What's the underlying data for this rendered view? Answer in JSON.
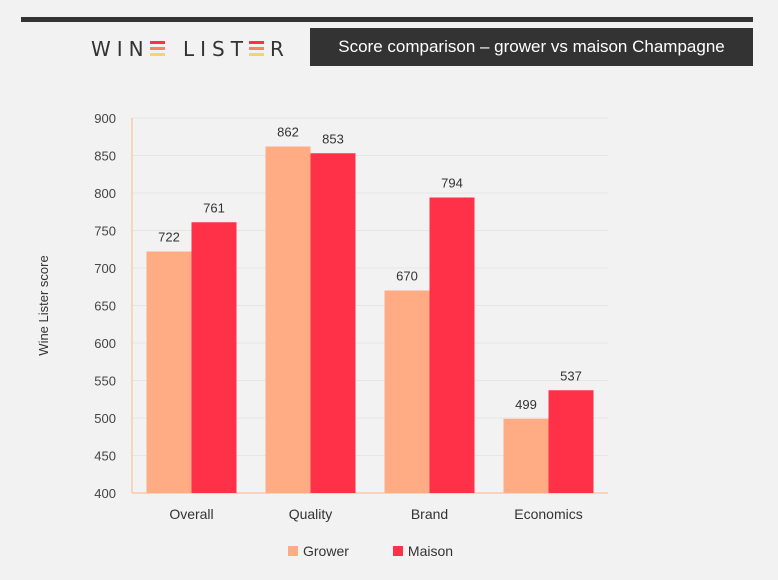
{
  "header": {
    "logo_left": "WIN",
    "logo_right": "LIST",
    "logo_end": "R",
    "logo_mark_colors": [
      "#ff3148",
      "#f08a5d",
      "#ffd166"
    ],
    "title": "Score comparison – grower vs maison Champagne"
  },
  "colors": {
    "grower": "#ffac84",
    "maison": "#ff3148",
    "axis": "#ffb58f",
    "grid": "#e6e6e6"
  },
  "chart_data": {
    "type": "bar",
    "categories": [
      "Overall",
      "Quality",
      "Brand",
      "Economics"
    ],
    "series": [
      {
        "name": "Grower",
        "values": [
          722,
          862,
          670,
          499
        ]
      },
      {
        "name": "Maison",
        "values": [
          761,
          853,
          794,
          537
        ]
      }
    ],
    "ylabel": "Wine Lister score",
    "xlabel": "",
    "ylim": [
      400,
      900
    ],
    "yticks": [
      400,
      450,
      500,
      550,
      600,
      650,
      700,
      750,
      800,
      850,
      900
    ],
    "grid": true,
    "legend": "bottom"
  }
}
